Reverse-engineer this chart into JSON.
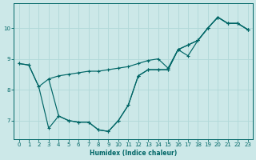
{
  "xlabel": "Humidex (Indice chaleur)",
  "bg_color": "#cce8e8",
  "line_color": "#006666",
  "grid_color": "#b0d8d8",
  "xlim": [
    -0.5,
    23.5
  ],
  "ylim": [
    6.4,
    10.8
  ],
  "yticks": [
    7,
    8,
    9,
    10
  ],
  "xticks": [
    0,
    1,
    2,
    3,
    4,
    5,
    6,
    7,
    8,
    9,
    10,
    11,
    12,
    13,
    14,
    15,
    16,
    17,
    18,
    19,
    20,
    21,
    22,
    23
  ],
  "line1_x": [
    0,
    1,
    2,
    3,
    4,
    5,
    6,
    7,
    8,
    9,
    10,
    11,
    12,
    13,
    14,
    15,
    16,
    17,
    18,
    19,
    20,
    21,
    22,
    23
  ],
  "line1_y": [
    8.85,
    8.8,
    8.1,
    8.35,
    8.45,
    8.5,
    8.55,
    8.6,
    8.6,
    8.65,
    8.7,
    8.75,
    8.85,
    8.95,
    9.0,
    8.7,
    9.3,
    9.45,
    9.6,
    10.0,
    10.35,
    10.15,
    10.15,
    9.95
  ],
  "line2_x": [
    0,
    1,
    2,
    3,
    4,
    5,
    6,
    7,
    8,
    9,
    10,
    11,
    12,
    13,
    14,
    15,
    16,
    17,
    18,
    19,
    20,
    21,
    22,
    23
  ],
  "line2_y": [
    8.85,
    8.8,
    8.1,
    6.75,
    7.15,
    7.0,
    6.95,
    6.95,
    6.7,
    6.65,
    7.0,
    7.5,
    8.45,
    8.65,
    8.65,
    8.65,
    9.3,
    9.1,
    9.6,
    10.0,
    10.35,
    10.15,
    10.15,
    9.95
  ],
  "line3_x": [
    3,
    4,
    5,
    6,
    7,
    8,
    9,
    10,
    11,
    12,
    13,
    14,
    15,
    16,
    17,
    18,
    19,
    20,
    21,
    22,
    23
  ],
  "line3_y": [
    8.35,
    7.15,
    7.0,
    6.95,
    6.95,
    6.7,
    6.65,
    7.0,
    7.5,
    8.45,
    8.65,
    8.65,
    8.65,
    9.3,
    9.45,
    9.6,
    10.0,
    10.35,
    10.15,
    10.15,
    9.95
  ]
}
